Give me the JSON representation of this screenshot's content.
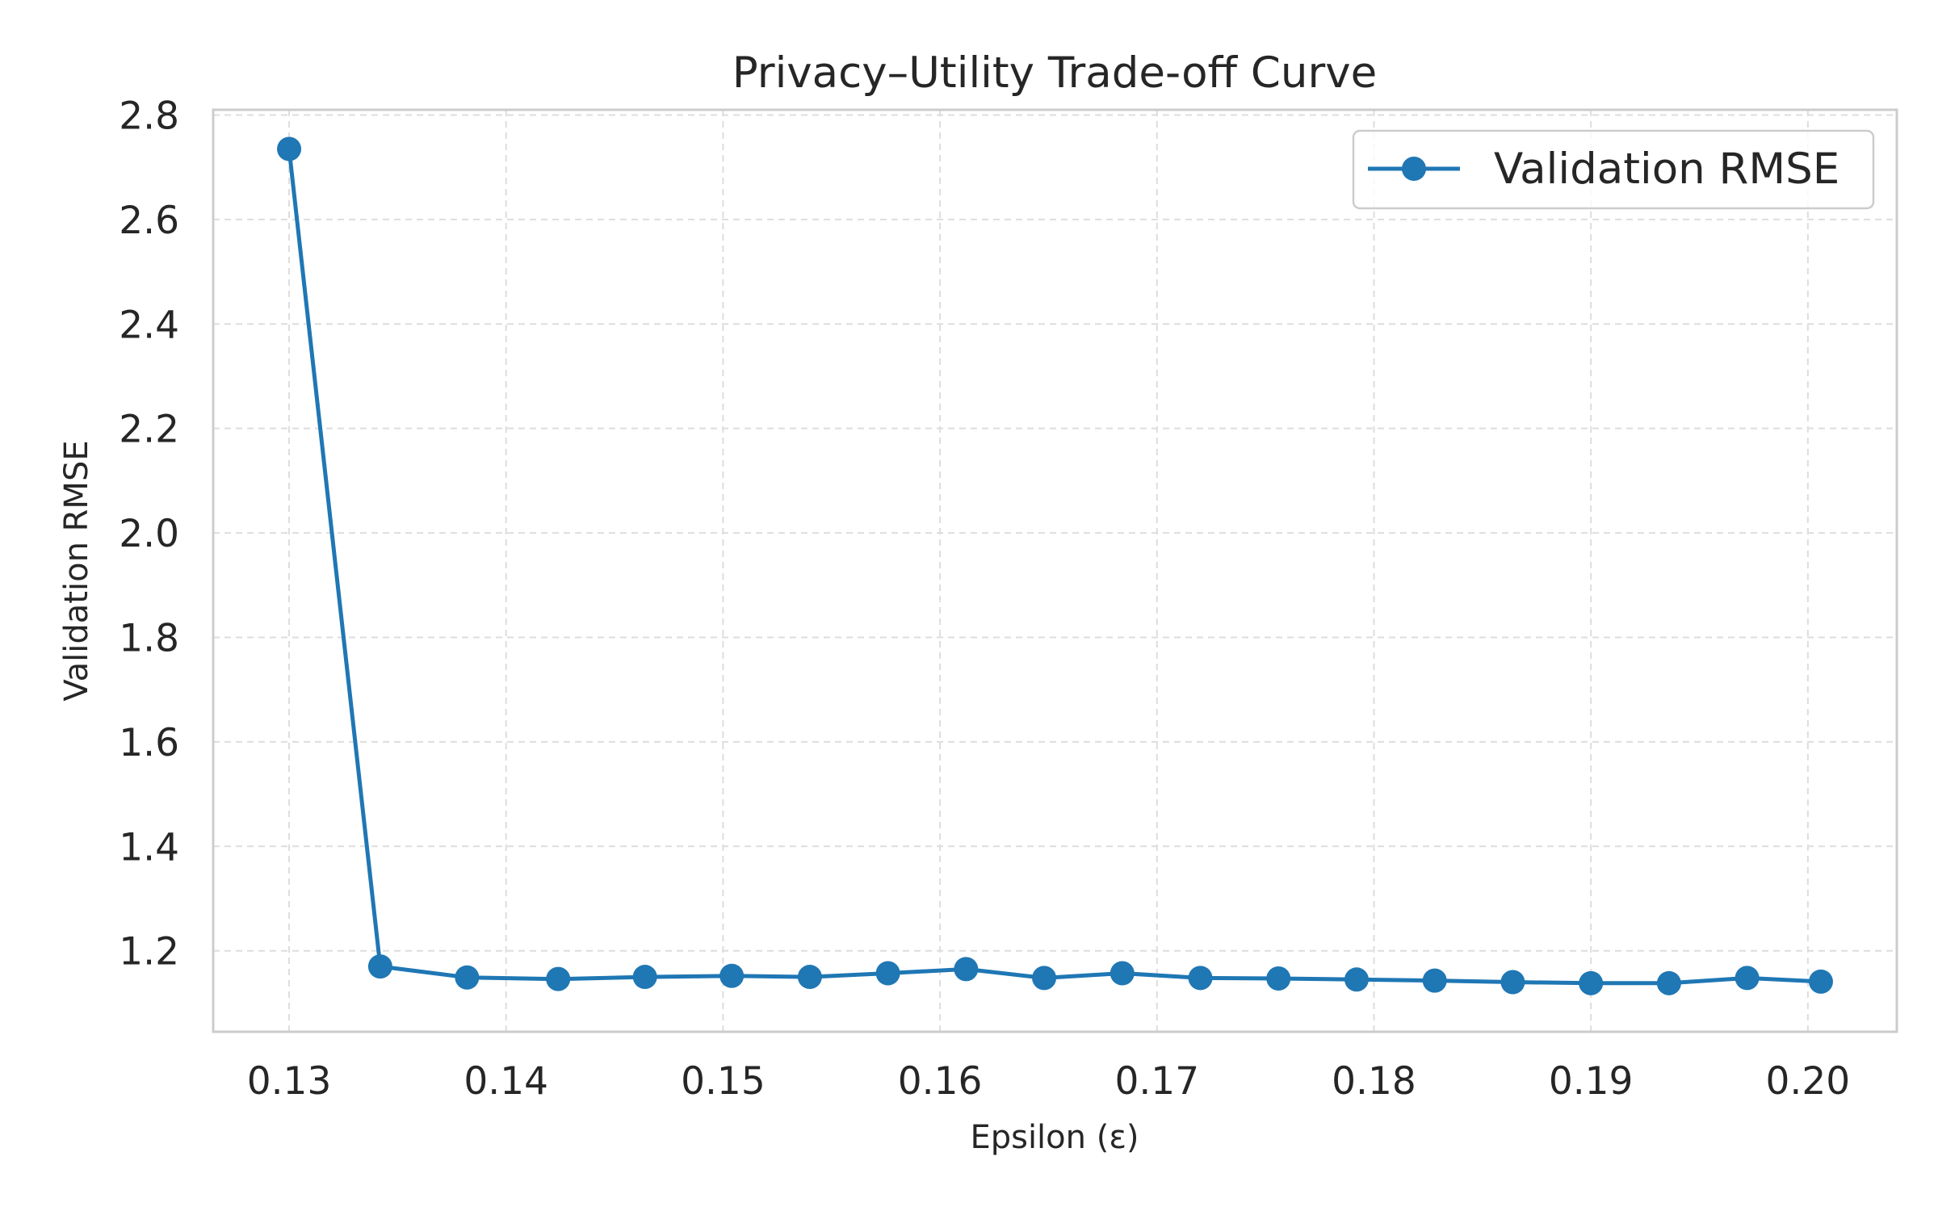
{
  "chart_data": {
    "type": "line",
    "title": "Privacy–Utility Trade-off Curve",
    "xlabel": "Epsilon (ε)",
    "ylabel": "Validation RMSE",
    "xlim": [
      0.1265,
      0.2041
    ],
    "ylim": [
      1.045,
      2.81
    ],
    "x_ticks": [
      0.13,
      0.14,
      0.15,
      0.16,
      0.17,
      0.18,
      0.19,
      0.2
    ],
    "x_tick_labels": [
      "0.13",
      "0.14",
      "0.15",
      "0.16",
      "0.17",
      "0.18",
      "0.19",
      "0.20"
    ],
    "y_ticks": [
      1.2,
      1.4,
      1.6,
      1.8,
      2.0,
      2.2,
      2.4,
      2.6,
      2.8
    ],
    "y_tick_labels": [
      "1.2",
      "1.4",
      "1.6",
      "1.8",
      "2.0",
      "2.2",
      "2.4",
      "2.6",
      "2.8"
    ],
    "grid": true,
    "legend": {
      "position": "top-right",
      "entries": [
        "Validation RMSE"
      ]
    },
    "series": [
      {
        "name": "Validation RMSE",
        "color": "#1f77b4",
        "marker": "circle",
        "x": [
          0.13,
          0.1342,
          0.1382,
          0.1424,
          0.1464,
          0.1504,
          0.154,
          0.1576,
          0.1612,
          0.1648,
          0.1684,
          0.172,
          0.1756,
          0.1792,
          0.1828,
          0.1864,
          0.19,
          0.1936,
          0.1972,
          0.2006
        ],
        "y": [
          2.735,
          1.17,
          1.149,
          1.146,
          1.15,
          1.152,
          1.15,
          1.157,
          1.165,
          1.148,
          1.157,
          1.148,
          1.147,
          1.145,
          1.143,
          1.14,
          1.138,
          1.138,
          1.148,
          1.141
        ]
      }
    ]
  }
}
